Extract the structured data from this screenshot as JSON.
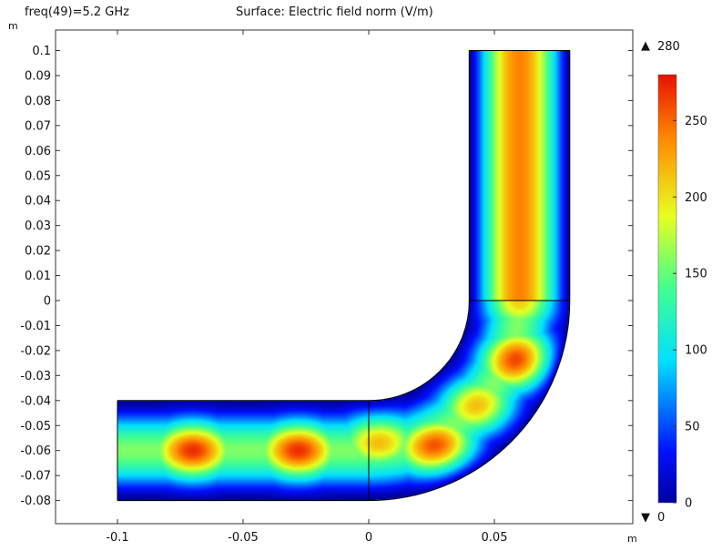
{
  "plot": {
    "left_label": "freq(49)=5.2 GHz",
    "title": "Surface: Electric field norm (V/m)",
    "unit_y": "m",
    "unit_x": "m"
  },
  "colorbar": {
    "max_label": "280",
    "min_label": "0",
    "max_marker": "▲",
    "min_marker": "▼",
    "ticks": [
      0,
      50,
      100,
      150,
      200,
      250
    ],
    "range": [
      0,
      280
    ],
    "colormap": "rainbow (blue-cyan-green-yellow-red)"
  },
  "chart_data": {
    "type": "heatmap",
    "title": "Surface: Electric field norm (V/m)",
    "subtitle": "freq(49)=5.2 GHz",
    "xlabel": "m",
    "ylabel": "m",
    "xlim": [
      -0.125,
      0.105
    ],
    "ylim": [
      -0.09,
      0.107
    ],
    "x_ticks": [
      -0.1,
      -0.05,
      0,
      0.05
    ],
    "x_tick_labels": [
      "-0.1",
      "-0.05",
      "0",
      "0.05"
    ],
    "y_ticks": [
      0.1,
      0.09,
      0.08,
      0.07,
      0.06,
      0.05,
      0.04,
      0.03,
      0.02,
      0.01,
      0,
      -0.01,
      -0.02,
      -0.03,
      -0.04,
      -0.05,
      -0.06,
      -0.07,
      -0.08
    ],
    "y_tick_labels": [
      "0.1",
      "0.09",
      "0.08",
      "0.07",
      "0.06",
      "0.05",
      "0.04",
      "0.03",
      "0.02",
      "0.01",
      "0",
      "-0.01",
      "-0.02",
      "-0.03",
      "-0.04",
      "-0.05",
      "-0.06",
      "-0.07",
      "-0.08"
    ],
    "color_range": [
      0,
      280
    ],
    "geometry": {
      "horizontal_arm": {
        "x": [
          -0.1,
          0
        ],
        "y": [
          -0.08,
          -0.04
        ]
      },
      "bend": {
        "center": [
          0,
          0
        ],
        "inner_radius": 0.04,
        "outer_radius": 0.08,
        "angle_deg": [
          270,
          360
        ]
      },
      "vertical_arm": {
        "x": [
          0.04,
          0.08
        ],
        "y": [
          0,
          0.1
        ]
      }
    },
    "field_peaks": [
      {
        "x": -0.07,
        "y": -0.06,
        "value": 270
      },
      {
        "x": -0.028,
        "y": -0.06,
        "value": 270
      },
      {
        "x": 0.004,
        "y": -0.056,
        "value": 220
      },
      {
        "x": 0.027,
        "y": -0.059,
        "value": 265
      },
      {
        "x": 0.043,
        "y": -0.042,
        "value": 215
      },
      {
        "x": 0.06,
        "y": -0.024,
        "value": 268
      },
      {
        "x": 0.06,
        "y": 0.0,
        "value": 210
      }
    ],
    "vertical_arm_peak": 240
  }
}
